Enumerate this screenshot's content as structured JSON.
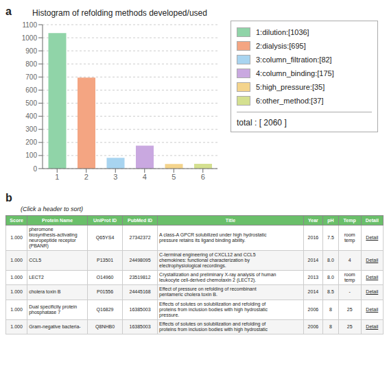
{
  "chart_data": [
    {
      "type": "bar",
      "title": "Histogram of refolding methods developed/used",
      "categories": [
        "1",
        "2",
        "3",
        "4",
        "5",
        "6"
      ],
      "series": [
        {
          "name": "1:dilution:[1036]",
          "color": "#90d4a8",
          "values": [
            1036,
            null,
            null,
            null,
            null,
            null
          ]
        },
        {
          "name": "2:dialysis:[695]",
          "color": "#f4a582",
          "values": [
            null,
            695,
            null,
            null,
            null,
            null
          ]
        },
        {
          "name": "3:column_filtration:[82]",
          "color": "#a8d4f0",
          "values": [
            null,
            null,
            82,
            null,
            null,
            null
          ]
        },
        {
          "name": "4:column_binding:[175]",
          "color": "#c9a8e0",
          "values": [
            null,
            null,
            null,
            175,
            null,
            null
          ]
        },
        {
          "name": "5:high_pressure:[35]",
          "color": "#f4d48c",
          "values": [
            null,
            null,
            null,
            null,
            35,
            null
          ]
        },
        {
          "name": "6:other_method:[37]",
          "color": "#d4e090",
          "values": [
            null,
            null,
            null,
            null,
            null,
            37
          ]
        }
      ],
      "stacked": true,
      "ylim": [
        0,
        1100
      ],
      "yticks": [
        0,
        100,
        200,
        300,
        400,
        500,
        600,
        700,
        800,
        900,
        1000,
        1100
      ],
      "grid": true,
      "legend": "right",
      "annotations": [
        "a",
        "total : [ 2060 ]"
      ]
    },
    {
      "type": "table",
      "annotations": [
        "b",
        "(Click a header to sort)"
      ],
      "color": "#6abf6a",
      "columns": [
        "Score",
        "Protein Name",
        "UniProt ID",
        "PubMed ID",
        "Title",
        "Year",
        "pH",
        "Temp",
        "Detail"
      ],
      "rows": [
        [
          "1.000",
          "pheromone\nbiosynthesis-activating\nneuropeptide receptor\n(PBANR)",
          "Q65YS4",
          "27342372",
          "A class-A GPCR solubilized under high hydrostatic\npressure retains its ligand binding ability.",
          "2016",
          "7.5",
          "room\ntemp",
          "Detail"
        ],
        [
          "1.000",
          "CCL5",
          "P13501",
          "24498095",
          "C-terminal engineering of CXCL12 and CCL5\nchemokines: functional characterization by\nelectrophysiological recordings.",
          "2014",
          "8.0",
          "4",
          "Detail"
        ],
        [
          "1.000",
          "LECT2",
          "O14960",
          "23519812",
          "Crystallization and preliminary X-ray analysis of human\nleukocyte cell-derived chemotaxin 2 (LECT2).",
          "2013",
          "8.0",
          "room\ntemp",
          "Detail"
        ],
        [
          "1.000",
          "cholera toxin B",
          "P01556",
          "24445168",
          "Effect of pressure on refolding of recombinant\npentameric cholera toxin B.",
          "2014",
          "8.5",
          "-",
          "Detail"
        ],
        [
          "1.000",
          "Dual specificity protein\nphosphatase 7",
          "Q16829",
          "16385003",
          "Effects of solutes on solubilization and refolding of\nproteins from inclusion bodies with high hydrostatic\npressure.",
          "2006",
          "8",
          "25",
          "Detail"
        ],
        [
          "1.000",
          "Gram-negative bacteria-",
          "Q8NHB0",
          "16385003",
          "Effects of solutes on solubilization and refolding of\nproteins from inclusion bodies with high hydrostatic",
          "2006",
          "8",
          "25",
          "Detail"
        ]
      ]
    }
  ]
}
